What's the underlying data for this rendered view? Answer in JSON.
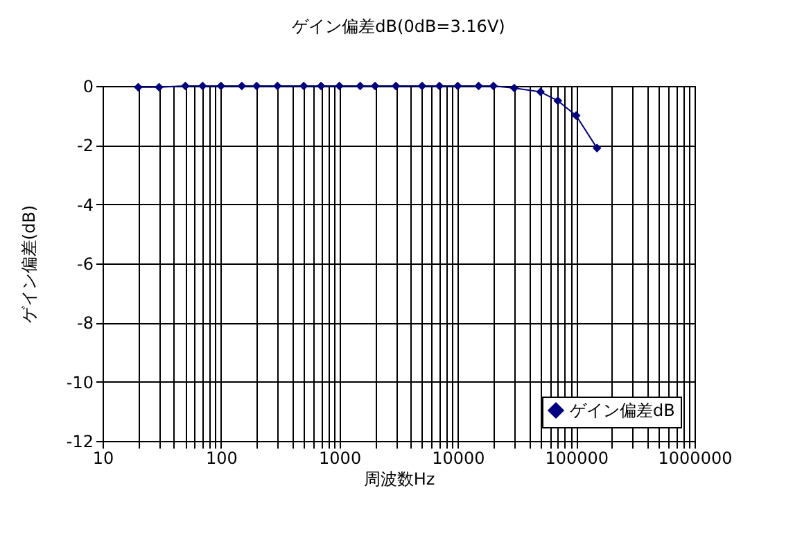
{
  "chart_data": {
    "type": "line",
    "title": "ゲイン偏差dB(0dB=3.16V)",
    "xlabel": "周波数Hz",
    "ylabel": "ゲイン偏差(dB)",
    "log": "x",
    "x": [
      20,
      30,
      50,
      70,
      100,
      150,
      200,
      300,
      500,
      700,
      1000,
      1500,
      2000,
      3000,
      5000,
      7000,
      10000,
      15000,
      20000,
      30000,
      50000,
      70000,
      100000,
      150000
    ],
    "series": [
      {
        "name": "ゲイン偏差dB",
        "color": "#000080",
        "values": [
          -0.04,
          -0.04,
          0,
          0,
          0,
          0,
          0,
          0,
          0,
          0,
          0,
          0,
          0,
          0,
          0,
          0,
          0,
          0,
          0,
          -0.07,
          -0.2,
          -0.5,
          -1.0,
          -2.1
        ]
      }
    ],
    "xlim": [
      10,
      1000000
    ],
    "xticks": [
      10,
      {
        "value": 20,
        "label": null
      },
      {
        "value": 30,
        "label": null
      },
      {
        "value": 40,
        "label": null
      },
      {
        "value": 50,
        "label": null
      },
      {
        "value": 60,
        "label": null
      },
      {
        "value": 70,
        "label": null
      },
      {
        "value": 80,
        "label": null
      },
      {
        "value": 90,
        "label": null
      },
      100,
      {
        "value": 200,
        "label": null
      },
      {
        "value": 300,
        "label": null
      },
      {
        "value": 400,
        "label": null
      },
      {
        "value": 500,
        "label": null
      },
      {
        "value": 600,
        "label": null
      },
      {
        "value": 700,
        "label": null
      },
      {
        "value": 800,
        "label": null
      },
      {
        "value": 900,
        "label": null
      },
      1000,
      {
        "value": 2000,
        "label": null
      },
      {
        "value": 3000,
        "label": null
      },
      {
        "value": 4000,
        "label": null
      },
      {
        "value": 5000,
        "label": null
      },
      {
        "value": 6000,
        "label": null
      },
      {
        "value": 7000,
        "label": null
      },
      {
        "value": 8000,
        "label": null
      },
      {
        "value": 9000,
        "label": null
      },
      10000,
      {
        "value": 20000,
        "label": null
      },
      {
        "value": 30000,
        "label": null
      },
      {
        "value": 40000,
        "label": null
      },
      {
        "value": 50000,
        "label": null
      },
      {
        "value": 60000,
        "label": null
      },
      {
        "value": 70000,
        "label": null
      },
      {
        "value": 80000,
        "label": null
      },
      {
        "value": 90000,
        "label": null
      },
      100000,
      {
        "value": 200000,
        "label": null
      },
      {
        "value": 300000,
        "label": null
      },
      {
        "value": 400000,
        "label": null
      },
      {
        "value": 500000,
        "label": null
      },
      {
        "value": 600000,
        "label": null
      },
      {
        "value": 700000,
        "label": null
      },
      {
        "value": 800000,
        "label": null
      },
      {
        "value": 900000,
        "label": null
      },
      1000000
    ],
    "ylim": [
      -12,
      0
    ],
    "yticks": [
      -12,
      -10,
      -8,
      -6,
      -4,
      -2,
      0
    ],
    "grid": true,
    "legend": "bottom right",
    "marker": "diamond",
    "line_style": "solid"
  }
}
